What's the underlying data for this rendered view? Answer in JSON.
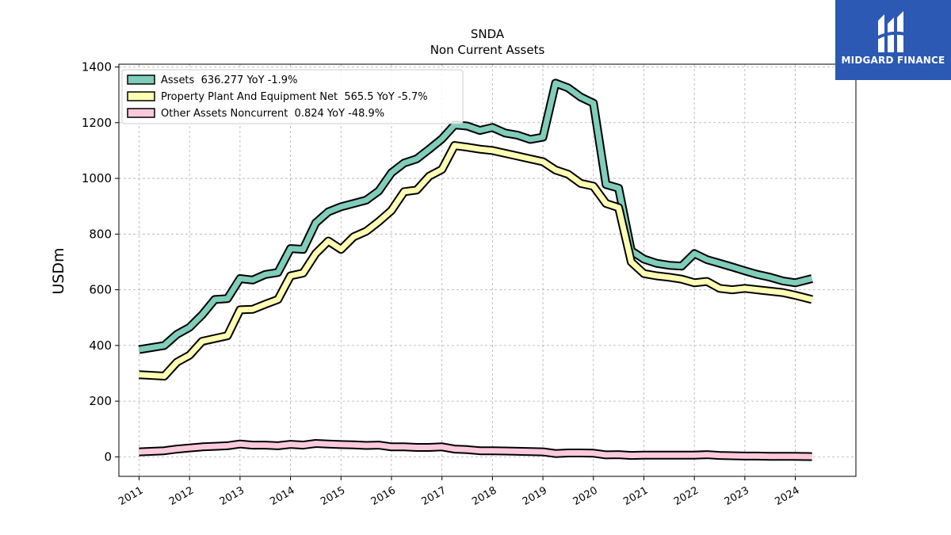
{
  "colors": {
    "assets": "#7fcdbb",
    "ppe": "#ffffb3",
    "other": "#fbc9dc",
    "outline": "#000000",
    "grid": "#b0b0b0",
    "logo_bg": "#2b59b3"
  },
  "logo": {
    "text": "MIDGARD FINANCE",
    "icon": "midgard-logo-icon"
  },
  "chart_data": {
    "type": "line",
    "title": "SNDA",
    "subtitle": "Non Current  Assets",
    "ylabel": "USDm",
    "xlabel": "",
    "ylim": [
      -70,
      1410
    ],
    "xlim": [
      2010.6,
      2025.2
    ],
    "yticks": [
      0,
      200,
      400,
      600,
      800,
      1000,
      1200,
      1400
    ],
    "xticks": [
      2011,
      2012,
      2013,
      2014,
      2015,
      2016,
      2017,
      2018,
      2019,
      2020,
      2021,
      2022,
      2023,
      2024
    ],
    "grid": true,
    "legend_position": "top-left",
    "series": [
      {
        "name": "Assets  636.277 YoY -1.9%",
        "key": "assets",
        "x": [
          2011.0,
          2011.5,
          2011.75,
          2012.0,
          2012.25,
          2012.5,
          2012.75,
          2013.0,
          2013.25,
          2013.5,
          2013.75,
          2014.0,
          2014.25,
          2014.5,
          2014.75,
          2015.0,
          2015.25,
          2015.5,
          2015.75,
          2016.0,
          2016.25,
          2016.5,
          2016.75,
          2017.0,
          2017.25,
          2017.5,
          2017.75,
          2018.0,
          2018.25,
          2018.5,
          2018.75,
          2019.0,
          2019.25,
          2019.5,
          2019.75,
          2020.0,
          2020.25,
          2020.5,
          2020.75,
          2021.0,
          2021.25,
          2021.5,
          2021.75,
          2022.0,
          2022.25,
          2022.5,
          2022.75,
          2023.0,
          2023.25,
          2023.5,
          2023.75,
          2024.0,
          2024.33
        ],
        "values": [
          385,
          400,
          440,
          465,
          510,
          565,
          568,
          640,
          635,
          655,
          662,
          748,
          745,
          840,
          880,
          898,
          910,
          922,
          955,
          1020,
          1055,
          1070,
          1105,
          1142,
          1192,
          1188,
          1172,
          1183,
          1163,
          1155,
          1140,
          1148,
          1342,
          1325,
          1292,
          1270,
          978,
          965,
          740,
          710,
          695,
          688,
          685,
          730,
          708,
          695,
          682,
          668,
          655,
          645,
          632,
          625,
          640
        ]
      },
      {
        "name": "Property Plant And Equipment Net  565.5 YoY -5.7%",
        "key": "ppe",
        "x": [
          2011.0,
          2011.5,
          2011.75,
          2012.0,
          2012.25,
          2012.5,
          2012.75,
          2013.0,
          2013.25,
          2013.5,
          2013.75,
          2014.0,
          2014.25,
          2014.5,
          2014.75,
          2015.0,
          2015.25,
          2015.5,
          2015.75,
          2016.0,
          2016.25,
          2016.5,
          2016.75,
          2017.0,
          2017.25,
          2017.5,
          2017.75,
          2018.0,
          2018.25,
          2018.5,
          2018.75,
          2019.0,
          2019.25,
          2019.5,
          2019.75,
          2020.0,
          2020.25,
          2020.5,
          2020.75,
          2021.0,
          2021.25,
          2021.5,
          2021.75,
          2022.0,
          2022.25,
          2022.5,
          2022.75,
          2023.0,
          2023.25,
          2023.5,
          2023.75,
          2024.0,
          2024.33
        ],
        "values": [
          295,
          290,
          340,
          365,
          415,
          425,
          435,
          528,
          530,
          548,
          565,
          650,
          660,
          730,
          775,
          745,
          790,
          810,
          845,
          885,
          952,
          958,
          1008,
          1032,
          1118,
          1112,
          1105,
          1100,
          1090,
          1080,
          1070,
          1060,
          1030,
          1015,
          982,
          972,
          910,
          895,
          700,
          658,
          650,
          645,
          638,
          625,
          630,
          605,
          600,
          605,
          600,
          595,
          590,
          580,
          565
        ]
      },
      {
        "name": "Other Assets Noncurrent  0.824 YoY -48.9%",
        "key": "other",
        "x": [
          2011.0,
          2011.5,
          2011.75,
          2012.0,
          2012.25,
          2012.5,
          2012.75,
          2013.0,
          2013.25,
          2013.5,
          2013.75,
          2014.0,
          2014.25,
          2014.5,
          2014.75,
          2015.0,
          2015.25,
          2015.5,
          2015.75,
          2016.0,
          2016.25,
          2016.5,
          2016.75,
          2017.0,
          2017.25,
          2017.5,
          2017.75,
          2018.0,
          2018.25,
          2018.5,
          2018.75,
          2019.0,
          2019.25,
          2019.5,
          2019.75,
          2020.0,
          2020.25,
          2020.5,
          2020.75,
          2021.0,
          2021.25,
          2021.5,
          2021.75,
          2022.0,
          2022.25,
          2022.5,
          2022.75,
          2023.0,
          2023.25,
          2023.5,
          2023.75,
          2024.0,
          2024.33
        ],
        "values": [
          18,
          22,
          28,
          32,
          36,
          38,
          40,
          46,
          42,
          42,
          40,
          45,
          42,
          48,
          46,
          44,
          43,
          41,
          42,
          36,
          36,
          34,
          34,
          36,
          28,
          26,
          22,
          22,
          21,
          20,
          19,
          18,
          12,
          14,
          14,
          13,
          7,
          8,
          5,
          6,
          6,
          6,
          6,
          6,
          8,
          5,
          4,
          3,
          3,
          2,
          2,
          2,
          1
        ]
      }
    ]
  }
}
